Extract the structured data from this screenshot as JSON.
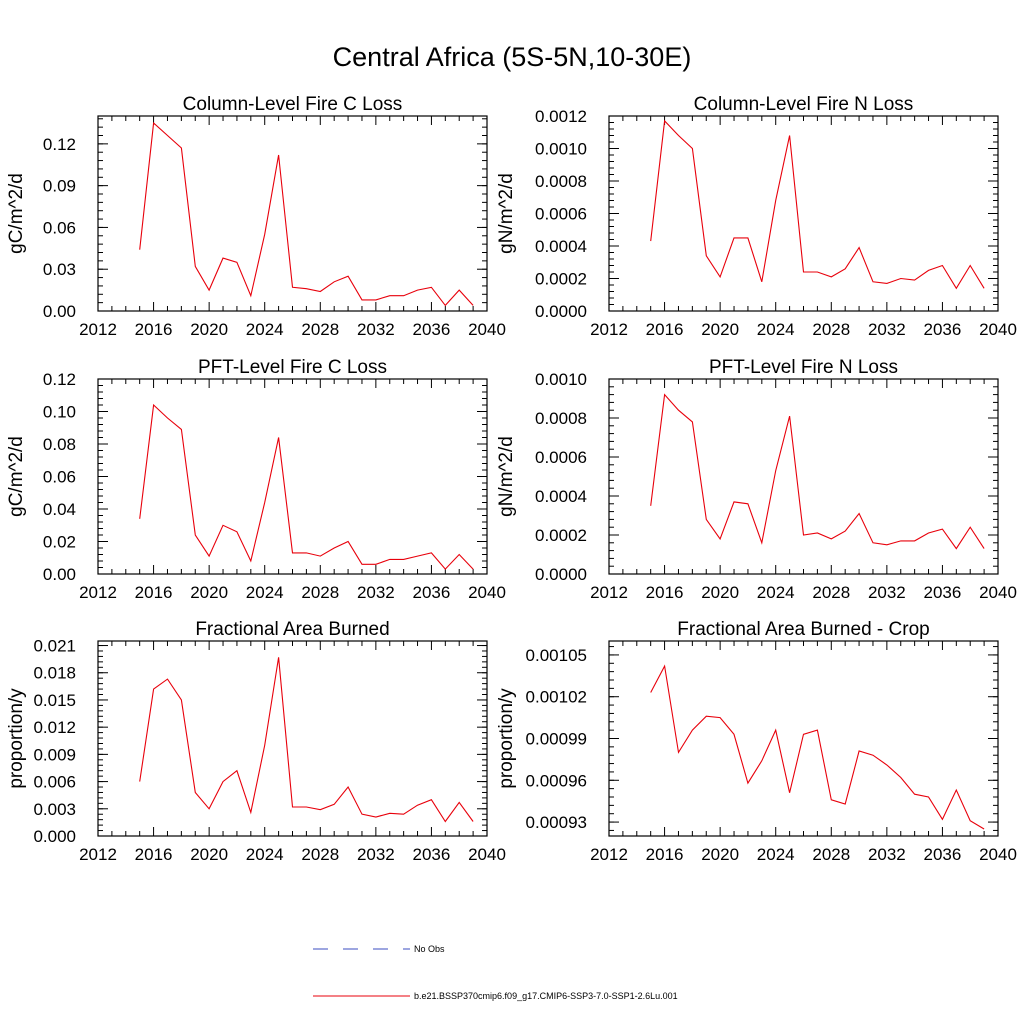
{
  "figure": {
    "title": "Central Africa (5S-5N,10-30E)",
    "line_color": "#e8000b",
    "obs_color": "#3b4cc0"
  },
  "legend": {
    "entries": [
      {
        "label": "No Obs",
        "style": "dashed",
        "color": "#3b4cc0"
      },
      {
        "label": "b.e21.BSSP370cmip6.f09_g17.CMIP6-SSP3-7.0-SSP1-2.6Lu.001",
        "style": "solid",
        "color": "#e8000b"
      }
    ]
  },
  "chart_data": [
    {
      "type": "line",
      "title": "Column-Level Fire C Loss",
      "xlabel": "",
      "ylabel": "gC/m^2/d",
      "xlim": [
        2012,
        2040
      ],
      "ylim": [
        0,
        0.14
      ],
      "xticks": [
        "2012",
        "2016",
        "2020",
        "2024",
        "2028",
        "2032",
        "2036",
        "2040"
      ],
      "yticks": [
        "0.00",
        "0.03",
        "0.06",
        "0.09",
        "0.12"
      ],
      "grid": false,
      "series": [
        {
          "x": [
            2015,
            2016,
            2017,
            2018,
            2019,
            2020,
            2021,
            2022,
            2023,
            2024,
            2025,
            2026,
            2027,
            2028,
            2029,
            2030,
            2031,
            2032,
            2033,
            2034,
            2035,
            2036,
            2037,
            2038,
            2039
          ],
          "values": [
            0.044,
            0.135,
            0.126,
            0.117,
            0.032,
            0.015,
            0.038,
            0.035,
            0.011,
            0.055,
            0.112,
            0.017,
            0.016,
            0.014,
            0.021,
            0.025,
            0.008,
            0.008,
            0.011,
            0.011,
            0.015,
            0.017,
            0.004,
            0.015,
            0.004
          ]
        }
      ]
    },
    {
      "type": "line",
      "title": "Column-Level Fire N Loss",
      "xlabel": "",
      "ylabel": "gN/m^2/d",
      "xlim": [
        2012,
        2040
      ],
      "ylim": [
        0,
        0.0012
      ],
      "xticks": [
        "2012",
        "2016",
        "2020",
        "2024",
        "2028",
        "2032",
        "2036",
        "2040"
      ],
      "yticks": [
        "0.0000",
        "0.0002",
        "0.0004",
        "0.0006",
        "0.0008",
        "0.0010",
        "0.0012"
      ],
      "grid": false,
      "series": [
        {
          "x": [
            2015,
            2016,
            2017,
            2018,
            2019,
            2020,
            2021,
            2022,
            2023,
            2024,
            2025,
            2026,
            2027,
            2028,
            2029,
            2030,
            2031,
            2032,
            2033,
            2034,
            2035,
            2036,
            2037,
            2038,
            2039
          ],
          "values": [
            0.00043,
            0.00117,
            0.00108,
            0.001,
            0.00034,
            0.00021,
            0.00045,
            0.00045,
            0.00018,
            0.00068,
            0.00108,
            0.00024,
            0.00024,
            0.00021,
            0.00026,
            0.00039,
            0.00018,
            0.00017,
            0.0002,
            0.00019,
            0.00025,
            0.00028,
            0.00014,
            0.00028,
            0.00014
          ]
        }
      ]
    },
    {
      "type": "line",
      "title": "PFT-Level Fire C Loss",
      "xlabel": "",
      "ylabel": "gC/m^2/d",
      "xlim": [
        2012,
        2040
      ],
      "ylim": [
        0,
        0.12
      ],
      "xticks": [
        "2012",
        "2016",
        "2020",
        "2024",
        "2028",
        "2032",
        "2036",
        "2040"
      ],
      "yticks": [
        "0.00",
        "0.02",
        "0.04",
        "0.06",
        "0.08",
        "0.10",
        "0.12"
      ],
      "grid": false,
      "series": [
        {
          "x": [
            2015,
            2016,
            2017,
            2018,
            2019,
            2020,
            2021,
            2022,
            2023,
            2024,
            2025,
            2026,
            2027,
            2028,
            2029,
            2030,
            2031,
            2032,
            2033,
            2034,
            2035,
            2036,
            2037,
            2038,
            2039
          ],
          "values": [
            0.034,
            0.104,
            0.096,
            0.089,
            0.024,
            0.011,
            0.03,
            0.026,
            0.008,
            0.044,
            0.084,
            0.013,
            0.013,
            0.011,
            0.016,
            0.02,
            0.006,
            0.006,
            0.009,
            0.009,
            0.011,
            0.013,
            0.003,
            0.012,
            0.003
          ]
        }
      ]
    },
    {
      "type": "line",
      "title": "PFT-Level Fire N Loss",
      "xlabel": "",
      "ylabel": "gN/m^2/d",
      "xlim": [
        2012,
        2040
      ],
      "ylim": [
        0,
        0.001
      ],
      "xticks": [
        "2012",
        "2016",
        "2020",
        "2024",
        "2028",
        "2032",
        "2036",
        "2040"
      ],
      "yticks": [
        "0.0000",
        "0.0002",
        "0.0004",
        "0.0006",
        "0.0008",
        "0.0010"
      ],
      "grid": false,
      "series": [
        {
          "x": [
            2015,
            2016,
            2017,
            2018,
            2019,
            2020,
            2021,
            2022,
            2023,
            2024,
            2025,
            2026,
            2027,
            2028,
            2029,
            2030,
            2031,
            2032,
            2033,
            2034,
            2035,
            2036,
            2037,
            2038,
            2039
          ],
          "values": [
            0.00035,
            0.00092,
            0.00084,
            0.00078,
            0.00028,
            0.00018,
            0.00037,
            0.00036,
            0.00016,
            0.00053,
            0.00081,
            0.0002,
            0.00021,
            0.00018,
            0.00022,
            0.00031,
            0.00016,
            0.00015,
            0.00017,
            0.00017,
            0.00021,
            0.00023,
            0.00013,
            0.00024,
            0.00013
          ]
        }
      ]
    },
    {
      "type": "line",
      "title": "Fractional Area Burned",
      "xlabel": "",
      "ylabel": "proportion/y",
      "xlim": [
        2012,
        2040
      ],
      "ylim": [
        0,
        0.0215
      ],
      "xticks": [
        "2012",
        "2016",
        "2020",
        "2024",
        "2028",
        "2032",
        "2036",
        "2040"
      ],
      "yticks": [
        "0.000",
        "0.003",
        "0.006",
        "0.009",
        "0.012",
        "0.015",
        "0.018",
        "0.021"
      ],
      "grid": false,
      "series": [
        {
          "x": [
            2015,
            2016,
            2017,
            2018,
            2019,
            2020,
            2021,
            2022,
            2023,
            2024,
            2025,
            2026,
            2027,
            2028,
            2029,
            2030,
            2031,
            2032,
            2033,
            2034,
            2035,
            2036,
            2037,
            2038,
            2039
          ],
          "values": [
            0.006,
            0.0162,
            0.0173,
            0.015,
            0.0048,
            0.003,
            0.006,
            0.0072,
            0.0026,
            0.01,
            0.0197,
            0.0032,
            0.0032,
            0.0029,
            0.0035,
            0.0054,
            0.0024,
            0.0021,
            0.0025,
            0.0024,
            0.0034,
            0.004,
            0.0016,
            0.0037,
            0.0016
          ]
        }
      ]
    },
    {
      "type": "line",
      "title": "Fractional Area Burned - Crop",
      "xlabel": "",
      "ylabel": "proportion/y",
      "xlim": [
        2012,
        2040
      ],
      "ylim": [
        0.00092,
        0.00106
      ],
      "xticks": [
        "2012",
        "2016",
        "2020",
        "2024",
        "2028",
        "2032",
        "2036",
        "2040"
      ],
      "yticks": [
        "0.00093",
        "0.00096",
        "0.00099",
        "0.00102",
        "0.00105"
      ],
      "grid": false,
      "series": [
        {
          "x": [
            2015,
            2016,
            2017,
            2018,
            2019,
            2020,
            2021,
            2022,
            2023,
            2024,
            2025,
            2026,
            2027,
            2028,
            2029,
            2030,
            2031,
            2032,
            2033,
            2034,
            2035,
            2036,
            2037,
            2038,
            2039
          ],
          "values": [
            0.001023,
            0.001042,
            0.00098,
            0.000996,
            0.001006,
            0.001005,
            0.000993,
            0.000958,
            0.000974,
            0.000996,
            0.000951,
            0.000993,
            0.000996,
            0.000946,
            0.000943,
            0.000981,
            0.000978,
            0.000971,
            0.000962,
            0.00095,
            0.000948,
            0.000932,
            0.000953,
            0.000931,
            0.000925
          ]
        }
      ]
    }
  ]
}
